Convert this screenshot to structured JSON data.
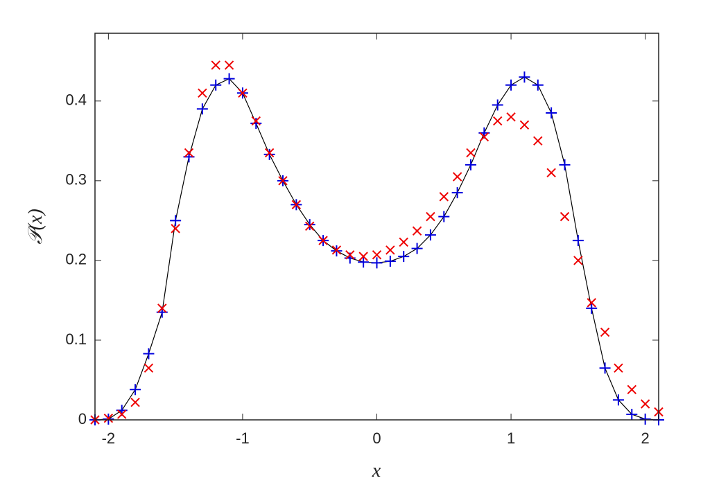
{
  "chart_data": {
    "type": "scatter",
    "xlabel": "x",
    "ylabel": "𝒫(x)",
    "x": [
      -2.1,
      -2.0,
      -1.9,
      -1.8,
      -1.7,
      -1.6,
      -1.5,
      -1.4,
      -1.3,
      -1.2,
      -1.1,
      -1.0,
      -0.9,
      -0.8,
      -0.7,
      -0.6,
      -0.5,
      -0.4,
      -0.3,
      -0.2,
      -0.1,
      0,
      0.1,
      0.2,
      0.3,
      0.4,
      0.5,
      0.6,
      0.7,
      0.8,
      0.9,
      1.0,
      1.1,
      1.2,
      1.3,
      1.4,
      1.5,
      1.6,
      1.7,
      1.8,
      1.9,
      2.0,
      2.1
    ],
    "series": [
      {
        "style": "line",
        "color": "#000000",
        "values": [
          0,
          0.001,
          0.012,
          0.038,
          0.083,
          0.135,
          0.25,
          0.33,
          0.39,
          0.42,
          0.428,
          0.41,
          0.372,
          0.333,
          0.3,
          0.27,
          0.245,
          0.225,
          0.212,
          0.203,
          0.198,
          0.197,
          0.199,
          0.205,
          0.215,
          0.232,
          0.255,
          0.285,
          0.32,
          0.36,
          0.395,
          0.42,
          0.43,
          0.42,
          0.385,
          0.32,
          0.225,
          0.14,
          0.065,
          0.025,
          0.007,
          0.001,
          0
        ]
      },
      {
        "style": "plus",
        "color": "#0000dd",
        "values": [
          0,
          0.001,
          0.012,
          0.038,
          0.083,
          0.135,
          0.25,
          0.33,
          0.39,
          0.42,
          0.428,
          0.41,
          0.372,
          0.333,
          0.3,
          0.27,
          0.245,
          0.225,
          0.212,
          0.203,
          0.198,
          0.197,
          0.199,
          0.205,
          0.215,
          0.232,
          0.255,
          0.285,
          0.32,
          0.36,
          0.395,
          0.42,
          0.43,
          0.42,
          0.385,
          0.32,
          0.225,
          0.14,
          0.065,
          0.025,
          0.007,
          0.001,
          0
        ]
      },
      {
        "style": "cross",
        "color": "#ee0000",
        "values": [
          0,
          0.002,
          0.007,
          0.022,
          0.065,
          0.14,
          0.24,
          0.335,
          0.41,
          0.445,
          0.445,
          0.41,
          0.375,
          0.335,
          0.3,
          0.27,
          0.243,
          0.225,
          0.213,
          0.207,
          0.205,
          0.207,
          0.213,
          0.223,
          0.237,
          0.255,
          0.28,
          0.305,
          0.335,
          0.355,
          0.375,
          0.38,
          0.37,
          0.35,
          0.31,
          0.255,
          0.2,
          0.147,
          0.11,
          0.065,
          0.038,
          0.02,
          0.01
        ]
      }
    ],
    "xlim": [
      -2.1,
      2.1
    ],
    "ylim": [
      0,
      0.485
    ],
    "xticks": [
      -2,
      -1,
      0,
      1,
      2
    ],
    "yticks": [
      0,
      0.1,
      0.2,
      0.3,
      0.4
    ]
  }
}
